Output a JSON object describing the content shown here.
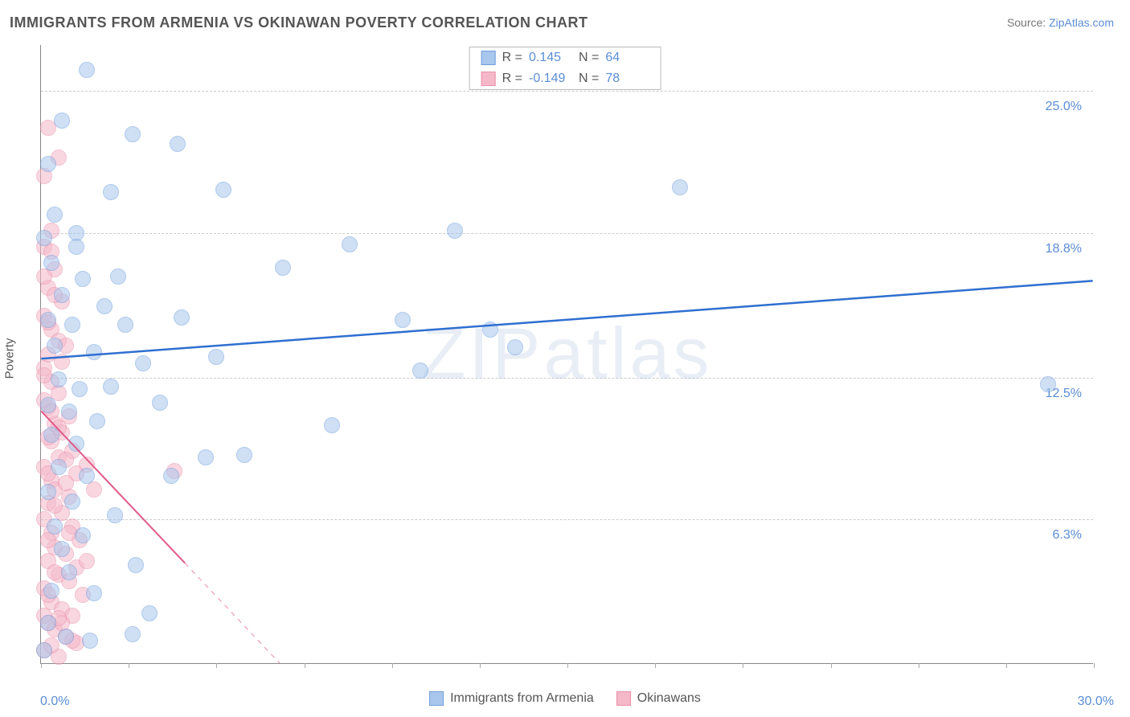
{
  "title": "IMMIGRANTS FROM ARMENIA VS OKINAWAN POVERTY CORRELATION CHART",
  "source_label": "Source:",
  "source_value": "ZipAtlas.com",
  "watermark": "ZIPatlas",
  "ylabel": "Poverty",
  "chart": {
    "type": "scatter",
    "background_color": "#ffffff",
    "grid_color": "#cccccc",
    "axis_color": "#888888",
    "xlim": [
      0,
      30
    ],
    "ylim": [
      0,
      27
    ],
    "x_tick_positions": [
      0,
      2.5,
      5,
      7.5,
      10,
      12.5,
      15,
      17.5,
      20,
      22.5,
      25,
      27.5,
      30
    ],
    "y_gridlines": [
      6.3,
      12.5,
      18.8,
      25.0
    ],
    "y_tick_labels": [
      "6.3%",
      "12.5%",
      "18.8%",
      "25.0%"
    ],
    "x_min_label": "0.0%",
    "x_max_label": "30.0%",
    "point_radius": 10,
    "point_opacity": 0.55,
    "series": [
      {
        "name": "Immigrants from Armenia",
        "color_fill": "#a9c6ec",
        "color_stroke": "#6f9fdd",
        "r": "0.145",
        "n": "64",
        "trend": {
          "x1": 0,
          "y1": 13.3,
          "x2": 30,
          "y2": 16.7,
          "color": "#2f6fd0",
          "width": 2.5,
          "dash_after_x": 30
        },
        "points": [
          [
            1.3,
            25.9
          ],
          [
            0.6,
            23.7
          ],
          [
            2.6,
            23.1
          ],
          [
            3.9,
            22.7
          ],
          [
            0.2,
            21.8
          ],
          [
            2.0,
            20.6
          ],
          [
            5.2,
            20.7
          ],
          [
            0.4,
            19.6
          ],
          [
            0.1,
            18.6
          ],
          [
            1.0,
            18.8
          ],
          [
            11.8,
            18.9
          ],
          [
            8.8,
            18.3
          ],
          [
            18.2,
            20.8
          ],
          [
            0.3,
            17.5
          ],
          [
            1.2,
            16.8
          ],
          [
            2.2,
            16.9
          ],
          [
            6.9,
            17.3
          ],
          [
            0.6,
            16.1
          ],
          [
            1.8,
            15.6
          ],
          [
            0.2,
            15.0
          ],
          [
            0.9,
            14.8
          ],
          [
            2.4,
            14.8
          ],
          [
            4.0,
            15.1
          ],
          [
            10.3,
            15.0
          ],
          [
            12.8,
            14.6
          ],
          [
            0.4,
            13.9
          ],
          [
            1.5,
            13.6
          ],
          [
            2.9,
            13.1
          ],
          [
            10.8,
            12.8
          ],
          [
            13.5,
            13.8
          ],
          [
            28.7,
            12.2
          ],
          [
            0.5,
            12.4
          ],
          [
            1.1,
            12.0
          ],
          [
            2.0,
            12.1
          ],
          [
            5.0,
            13.4
          ],
          [
            0.2,
            11.3
          ],
          [
            0.8,
            11.0
          ],
          [
            1.6,
            10.6
          ],
          [
            3.4,
            11.4
          ],
          [
            8.3,
            10.4
          ],
          [
            0.3,
            10.0
          ],
          [
            1.0,
            9.6
          ],
          [
            4.7,
            9.0
          ],
          [
            5.8,
            9.1
          ],
          [
            0.5,
            8.6
          ],
          [
            1.3,
            8.2
          ],
          [
            3.7,
            8.2
          ],
          [
            0.2,
            7.5
          ],
          [
            0.9,
            7.1
          ],
          [
            2.1,
            6.5
          ],
          [
            0.4,
            6.0
          ],
          [
            1.2,
            5.6
          ],
          [
            0.6,
            5.0
          ],
          [
            2.7,
            4.3
          ],
          [
            0.8,
            4.0
          ],
          [
            0.3,
            3.2
          ],
          [
            1.5,
            3.1
          ],
          [
            3.1,
            2.2
          ],
          [
            0.2,
            1.8
          ],
          [
            0.7,
            1.2
          ],
          [
            1.4,
            1.0
          ],
          [
            2.6,
            1.3
          ],
          [
            0.1,
            0.6
          ],
          [
            1.0,
            18.2
          ]
        ]
      },
      {
        "name": "Okinawans",
        "color_fill": "#f5b8c9",
        "color_stroke": "#e98faa",
        "r": "-0.149",
        "n": "78",
        "trend": {
          "x1": 0,
          "y1": 11.0,
          "x2": 6.8,
          "y2": 0,
          "color": "#e05a8a",
          "width": 2,
          "dash_after_x": 4.1
        },
        "points": [
          [
            0.2,
            23.4
          ],
          [
            0.5,
            22.1
          ],
          [
            0.1,
            21.3
          ],
          [
            0.3,
            18.9
          ],
          [
            0.1,
            18.2
          ],
          [
            0.4,
            17.2
          ],
          [
            0.2,
            16.4
          ],
          [
            0.6,
            15.8
          ],
          [
            0.1,
            15.2
          ],
          [
            0.3,
            14.6
          ],
          [
            0.5,
            14.1
          ],
          [
            0.2,
            13.5
          ],
          [
            0.7,
            13.9
          ],
          [
            0.1,
            12.9
          ],
          [
            0.3,
            12.3
          ],
          [
            0.5,
            11.8
          ],
          [
            0.2,
            11.2
          ],
          [
            0.8,
            10.8
          ],
          [
            0.1,
            11.5
          ],
          [
            0.4,
            10.5
          ],
          [
            0.6,
            10.1
          ],
          [
            0.3,
            9.7
          ],
          [
            0.9,
            9.3
          ],
          [
            0.2,
            9.9
          ],
          [
            0.5,
            9.0
          ],
          [
            0.1,
            8.6
          ],
          [
            0.7,
            8.9
          ],
          [
            1.0,
            8.3
          ],
          [
            0.3,
            8.0
          ],
          [
            1.3,
            8.7
          ],
          [
            0.4,
            7.6
          ],
          [
            0.8,
            7.3
          ],
          [
            0.2,
            7.0
          ],
          [
            1.5,
            7.6
          ],
          [
            0.6,
            6.6
          ],
          [
            0.1,
            6.3
          ],
          [
            0.9,
            6.0
          ],
          [
            0.3,
            5.7
          ],
          [
            1.1,
            5.4
          ],
          [
            0.4,
            5.1
          ],
          [
            0.7,
            4.8
          ],
          [
            0.2,
            4.5
          ],
          [
            1.0,
            4.2
          ],
          [
            0.5,
            3.9
          ],
          [
            0.8,
            3.6
          ],
          [
            0.1,
            3.3
          ],
          [
            1.2,
            3.0
          ],
          [
            0.3,
            2.7
          ],
          [
            0.6,
            2.4
          ],
          [
            0.9,
            2.1
          ],
          [
            0.2,
            1.8
          ],
          [
            0.4,
            1.5
          ],
          [
            0.7,
            1.2
          ],
          [
            1.0,
            0.9
          ],
          [
            0.1,
            0.6
          ],
          [
            0.5,
            0.3
          ],
          [
            3.8,
            8.4
          ],
          [
            0.3,
            18.0
          ],
          [
            0.1,
            16.9
          ],
          [
            0.4,
            16.1
          ],
          [
            0.2,
            14.9
          ],
          [
            0.6,
            13.2
          ],
          [
            0.1,
            12.6
          ],
          [
            0.3,
            11.0
          ],
          [
            0.5,
            10.3
          ],
          [
            0.2,
            8.3
          ],
          [
            0.7,
            7.9
          ],
          [
            0.4,
            6.9
          ],
          [
            0.8,
            5.7
          ],
          [
            1.3,
            4.5
          ],
          [
            0.2,
            3.0
          ],
          [
            0.6,
            1.8
          ],
          [
            0.9,
            1.0
          ],
          [
            0.1,
            2.1
          ],
          [
            0.3,
            0.8
          ],
          [
            0.5,
            2.0
          ],
          [
            0.2,
            5.4
          ],
          [
            0.4,
            4.0
          ]
        ]
      }
    ]
  },
  "stats_labels": {
    "R": "R  =",
    "N": "N  ="
  }
}
